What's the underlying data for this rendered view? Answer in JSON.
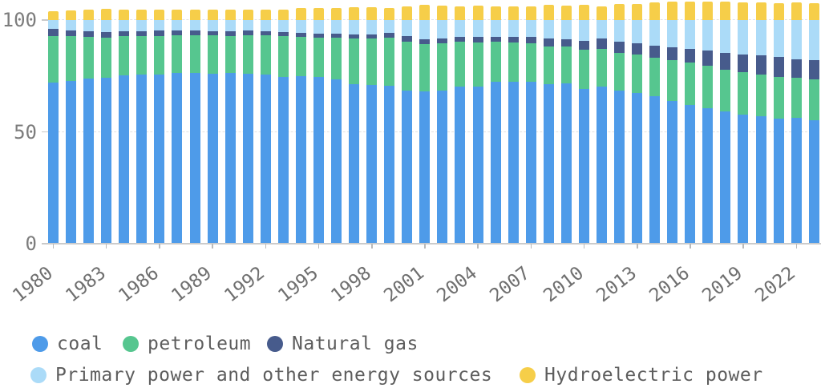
{
  "chart_data": {
    "type": "bar",
    "stacked": true,
    "title": "",
    "xlabel": "",
    "ylabel": "",
    "ylim": [
      0,
      109
    ],
    "grid": "horizontal dashed lines at 50 and 100, legend at bottom",
    "legend_position": "bottom",
    "y_ticks": [
      0,
      50,
      100
    ],
    "x": [
      1980,
      1981,
      1982,
      1983,
      1984,
      1985,
      1986,
      1987,
      1988,
      1989,
      1990,
      1991,
      1992,
      1993,
      1994,
      1995,
      1996,
      1997,
      1998,
      1999,
      2000,
      2001,
      2002,
      2003,
      2004,
      2005,
      2006,
      2007,
      2008,
      2009,
      2010,
      2011,
      2012,
      2013,
      2014,
      2015,
      2016,
      2017,
      2018,
      2019,
      2020,
      2021,
      2022,
      2023
    ],
    "x_tick_labels": [
      "1980",
      "1983",
      "1986",
      "1989",
      "1992",
      "1995",
      "1998",
      "2001",
      "2004",
      "2007",
      "2010",
      "2013",
      "2016",
      "2019",
      "2022"
    ],
    "x_tick_every": 3,
    "series": [
      {
        "name": "coal",
        "color": "#4E9BE9",
        "values": [
          72.2,
          72.7,
          73.7,
          74.2,
          75.3,
          75.8,
          75.8,
          76.2,
          76.2,
          76.0,
          76.2,
          76.1,
          75.7,
          74.7,
          75.0,
          74.6,
          73.5,
          71.4,
          70.9,
          70.6,
          68.5,
          68.0,
          68.5,
          70.2,
          70.2,
          72.4,
          72.4,
          72.5,
          71.5,
          71.6,
          69.2,
          70.2,
          68.5,
          67.4,
          65.8,
          63.8,
          62.2,
          60.6,
          59.0,
          57.7,
          56.9,
          56.0,
          56.2,
          55.3
        ]
      },
      {
        "name": "petroleum",
        "color": "#56C68F",
        "values": [
          20.7,
          20.0,
          18.9,
          18.1,
          17.4,
          17.1,
          17.2,
          17.0,
          17.0,
          17.1,
          16.6,
          17.1,
          17.5,
          18.2,
          17.4,
          17.5,
          18.7,
          20.4,
          20.8,
          21.5,
          22.0,
          21.2,
          21.0,
          20.1,
          19.9,
          17.8,
          17.5,
          17.0,
          16.7,
          16.4,
          17.4,
          16.8,
          17.0,
          17.1,
          17.3,
          18.4,
          18.7,
          18.9,
          18.9,
          19.0,
          18.9,
          18.5,
          17.9,
          18.3
        ]
      },
      {
        "name": "Natural gas",
        "color": "#475B8C",
        "values": [
          3.1,
          2.8,
          2.5,
          2.4,
          2.4,
          2.2,
          2.3,
          2.1,
          2.1,
          2.0,
          2.1,
          2.0,
          1.9,
          1.9,
          1.9,
          1.8,
          1.8,
          1.8,
          1.8,
          2.0,
          2.2,
          2.4,
          2.3,
          2.3,
          2.3,
          2.4,
          2.7,
          3.0,
          3.4,
          3.5,
          4.0,
          4.6,
          4.8,
          5.3,
          5.6,
          5.8,
          6.1,
          6.9,
          7.6,
          8.0,
          8.4,
          8.9,
          8.4,
          8.5
        ]
      },
      {
        "name": "Primary power and other energy sources",
        "color": "#ABDBF8",
        "values": [
          4.0,
          4.5,
          4.9,
          5.3,
          4.9,
          4.9,
          4.7,
          4.7,
          4.7,
          4.9,
          5.1,
          4.8,
          4.9,
          5.2,
          5.7,
          6.1,
          6.0,
          6.4,
          6.5,
          5.9,
          7.3,
          8.4,
          8.2,
          7.4,
          7.6,
          7.4,
          7.4,
          7.5,
          8.4,
          8.5,
          9.4,
          8.4,
          9.7,
          10.2,
          11.3,
          12.0,
          13.0,
          13.6,
          14.5,
          15.3,
          15.8,
          16.6,
          17.5,
          17.9
        ]
      },
      {
        "name": "Hydroelectric power",
        "color": "#F6CE49",
        "values": [
          4.1,
          4.4,
          4.7,
          5.0,
          4.8,
          4.7,
          4.6,
          4.5,
          4.6,
          4.6,
          4.8,
          4.6,
          4.6,
          4.8,
          5.3,
          5.6,
          5.5,
          5.7,
          5.8,
          5.4,
          6.1,
          6.9,
          6.6,
          6.0,
          6.3,
          6.2,
          6.0,
          6.1,
          6.7,
          6.5,
          7.0,
          6.2,
          7.1,
          7.2,
          7.9,
          8.3,
          8.4,
          8.2,
          8.2,
          8.0,
          7.9,
          7.6,
          7.8,
          7.7
        ]
      }
    ]
  }
}
